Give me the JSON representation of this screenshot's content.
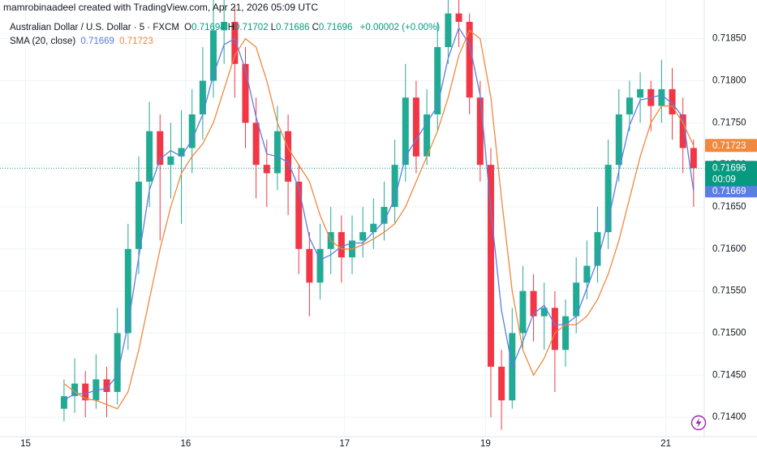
{
  "credit": "mamrobinaadeel created with TradingView.com, Apr 21, 2026 05:09 UTC",
  "chart_data": {
    "type": "candlestick",
    "title": "Australian Dollar / U.S. Dollar · 5 · FXCM",
    "ohlc_header": [
      {
        "label": "O",
        "value": 0.71694
      },
      {
        "label": "H",
        "value": 0.71702
      },
      {
        "label": "L",
        "value": 0.71686
      },
      {
        "label": "C",
        "value": 0.71696
      }
    ],
    "change": "+0.00002 (+0.00%)",
    "up_color": "#22ab94",
    "down_color": "#f23645",
    "candles": {
      "open": [
        0.7141,
        0.71425,
        0.7144,
        0.7142,
        0.71445,
        0.7143,
        0.715,
        0.716,
        0.7168,
        0.7174,
        0.717,
        0.7171,
        0.7172,
        0.7176,
        0.718,
        0.7186,
        0.7187,
        0.7182,
        0.7175,
        0.717,
        0.7169,
        0.7174,
        0.7168,
        0.716,
        0.7156,
        0.716,
        0.7162,
        0.7159,
        0.7161,
        0.7162,
        0.7163,
        0.7165,
        0.717,
        0.7178,
        0.7171,
        0.7176,
        0.7184,
        0.7188,
        0.7187,
        0.7178,
        0.717,
        0.7146,
        0.7142,
        0.715,
        0.7155,
        0.7152,
        0.7153,
        0.7148,
        0.7152,
        0.7156,
        0.7158,
        0.7162,
        0.717,
        0.7176,
        0.7178,
        0.7179,
        0.7177,
        0.7179,
        0.7176,
        0.7172
      ],
      "high": [
        0.71445,
        0.7147,
        0.71455,
        0.71475,
        0.7146,
        0.7153,
        0.7163,
        0.7171,
        0.71775,
        0.7176,
        0.7175,
        0.71765,
        0.7179,
        0.7184,
        0.719,
        0.719,
        0.7189,
        0.7184,
        0.7178,
        0.7173,
        0.7177,
        0.7176,
        0.717,
        0.7162,
        0.7163,
        0.7165,
        0.7164,
        0.7164,
        0.7165,
        0.7166,
        0.7168,
        0.7173,
        0.7182,
        0.718,
        0.7179,
        0.7187,
        0.719,
        0.719,
        0.7188,
        0.718,
        0.7172,
        0.7148,
        0.7153,
        0.7158,
        0.7157,
        0.7156,
        0.7155,
        0.7154,
        0.7159,
        0.7161,
        0.7165,
        0.7173,
        0.7179,
        0.718,
        0.7181,
        0.718,
        0.71825,
        0.71815,
        0.7178,
        0.7173
      ],
      "low": [
        0.71395,
        0.71405,
        0.714,
        0.7141,
        0.714,
        0.71415,
        0.7148,
        0.7157,
        0.7165,
        0.7161,
        0.7166,
        0.7163,
        0.7169,
        0.7173,
        0.7178,
        0.7182,
        0.7178,
        0.7172,
        0.7166,
        0.7165,
        0.7167,
        0.7164,
        0.7157,
        0.7152,
        0.7154,
        0.7157,
        0.7156,
        0.7157,
        0.7159,
        0.716,
        0.7161,
        0.7163,
        0.7168,
        0.7169,
        0.717,
        0.7174,
        0.7182,
        0.7184,
        0.7176,
        0.7168,
        0.714,
        0.71385,
        0.7141,
        0.7148,
        0.7149,
        0.7148,
        0.7143,
        0.7146,
        0.715,
        0.7154,
        0.7156,
        0.716,
        0.7168,
        0.7174,
        0.7175,
        0.7174,
        0.7175,
        0.7173,
        0.7169,
        0.7165
      ],
      "close": [
        0.71425,
        0.7144,
        0.7142,
        0.71445,
        0.7143,
        0.715,
        0.716,
        0.7168,
        0.7174,
        0.717,
        0.7171,
        0.7172,
        0.7176,
        0.718,
        0.7186,
        0.7187,
        0.7182,
        0.7175,
        0.717,
        0.7169,
        0.7174,
        0.7168,
        0.716,
        0.7156,
        0.716,
        0.7162,
        0.7159,
        0.7161,
        0.7162,
        0.7163,
        0.7165,
        0.717,
        0.7178,
        0.7171,
        0.7176,
        0.7184,
        0.7188,
        0.7187,
        0.7178,
        0.717,
        0.7146,
        0.7142,
        0.715,
        0.7155,
        0.7152,
        0.7153,
        0.7148,
        0.7152,
        0.7156,
        0.7158,
        0.7162,
        0.717,
        0.7176,
        0.7178,
        0.7179,
        0.7177,
        0.7179,
        0.7176,
        0.7172,
        0.71696
      ]
    },
    "last_countdown": "00:09",
    "last_color": "#089981",
    "sma": {
      "name": "SMA (20, close)",
      "lines": [
        {
          "color": "#5b7ee5",
          "values": [
            0.7142,
            0.71428,
            0.71428,
            0.71432,
            0.71434,
            0.7145,
            0.7151,
            0.7159,
            0.7167,
            0.71707,
            0.71717,
            0.7171,
            0.7173,
            0.7176,
            0.71807,
            0.71843,
            0.7185,
            0.71813,
            0.71757,
            0.71713,
            0.7171,
            0.71703,
            0.71673,
            0.71613,
            0.71587,
            0.71593,
            0.71603,
            0.71607,
            0.71607,
            0.7162,
            0.71633,
            0.7166,
            0.7171,
            0.7173,
            0.7175,
            0.7177,
            0.71827,
            0.71863,
            0.71843,
            0.71783,
            0.71647,
            0.71527,
            0.7146,
            0.7149,
            0.71523,
            0.71533,
            0.7151,
            0.7151,
            0.7152,
            0.71553,
            0.71587,
            0.71633,
            0.71693,
            0.71747,
            0.71777,
            0.7178,
            0.71783,
            0.71773,
            0.71757,
            0.71669
          ]
        },
        {
          "color": "#f0883e",
          "values": [
            0.7144,
            0.7143,
            0.71422,
            0.7142,
            0.71415,
            0.7141,
            0.7143,
            0.7148,
            0.7154,
            0.716,
            0.7165,
            0.7169,
            0.7171,
            0.71725,
            0.7175,
            0.7179,
            0.7183,
            0.7185,
            0.7184,
            0.718,
            0.7175,
            0.7172,
            0.717,
            0.7168,
            0.7164,
            0.7161,
            0.716,
            0.716,
            0.71605,
            0.71612,
            0.7162,
            0.7163,
            0.7165,
            0.7168,
            0.7171,
            0.7174,
            0.7178,
            0.7183,
            0.7186,
            0.7185,
            0.7178,
            0.7166,
            0.7155,
            0.7148,
            0.7145,
            0.7147,
            0.715,
            0.7151,
            0.7151,
            0.7152,
            0.7154,
            0.7157,
            0.7161,
            0.7166,
            0.7171,
            0.7175,
            0.7177,
            0.7177,
            0.7175,
            0.71723
          ]
        }
      ]
    },
    "xlim": [
      -6,
      60
    ],
    "xticks": [
      {
        "value": -3.6,
        "label": "15"
      },
      {
        "value": 11.4,
        "label": "16"
      },
      {
        "value": 26.3,
        "label": "17"
      },
      {
        "value": 39.5,
        "label": "19"
      },
      {
        "value": 56.4,
        "label": "21"
      }
    ],
    "ylim": [
      0.71375,
      0.71896
    ],
    "yticks": [
      {
        "value": 0.714,
        "label": "0.71400"
      },
      {
        "value": 0.7145,
        "label": "0.71450"
      },
      {
        "value": 0.715,
        "label": "0.71500"
      },
      {
        "value": 0.7155,
        "label": "0.71550"
      },
      {
        "value": 0.716,
        "label": "0.71600"
      },
      {
        "value": 0.7165,
        "label": "0.71650"
      },
      {
        "value": 0.717,
        "label": "0.71700"
      },
      {
        "value": 0.7175,
        "label": "0.71750"
      },
      {
        "value": 0.718,
        "label": "0.71800"
      },
      {
        "value": 0.7185,
        "label": "0.71850"
      }
    ],
    "grid": true
  }
}
